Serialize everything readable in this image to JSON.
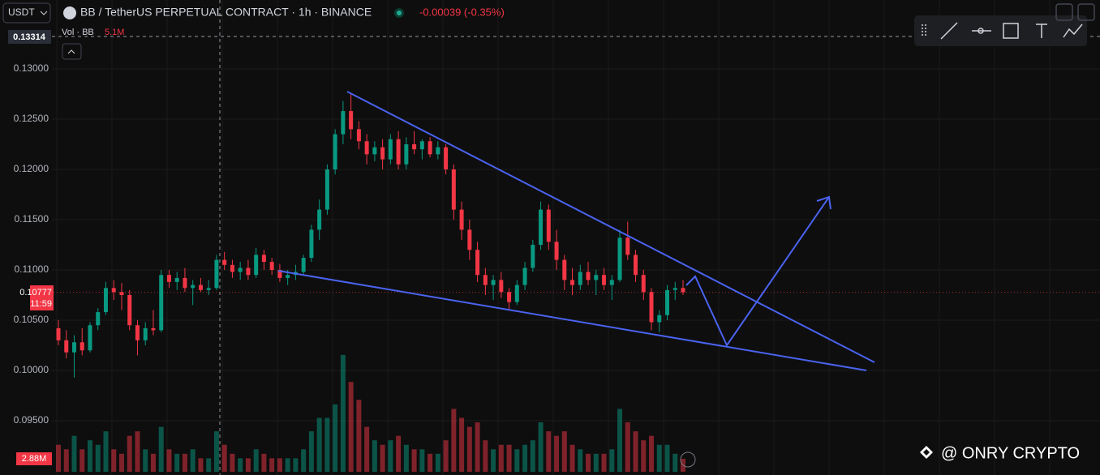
{
  "chart_data": {
    "type": "candlestick",
    "quote": "USDT",
    "title": "BB / TetherUS PERPETUAL CONTRACT · 1h · BINANCE",
    "change": "-0.00039 (-0.35%)",
    "volume_title": "Vol · BB",
    "volume_value": "5.1M",
    "crosshair_price": 0.13314,
    "current_price": 0.10777,
    "countdown": "11:59",
    "current_volume": {
      "value": 2.88,
      "label": "2.88M"
    },
    "watermark": "@ ONRY CRYPTO",
    "up_color": "#089981",
    "down_color": "#f23645",
    "line_color": "#4a63f0",
    "grid": true,
    "ylim": [
      0.0896,
      0.13685
    ],
    "yticks": [
      {
        "value": 0.095,
        "label": "0.09500"
      },
      {
        "value": 0.1,
        "label": "0.10000"
      },
      {
        "value": 0.105,
        "label": "0.10500"
      },
      {
        "value": 0.11,
        "label": "0.11000"
      },
      {
        "value": 0.115,
        "label": "0.11500"
      },
      {
        "value": 0.12,
        "label": "0.12000"
      },
      {
        "value": 0.125,
        "label": "0.12500"
      },
      {
        "value": 0.13,
        "label": "0.13000"
      }
    ],
    "volume_ylim": [
      0,
      105
    ],
    "candles": [
      [
        0.1042,
        0.105,
        0.1025,
        0.103
      ],
      [
        0.103,
        0.104,
        0.1012,
        0.1018
      ],
      [
        0.1018,
        0.1035,
        0.0993,
        0.1028
      ],
      [
        0.1028,
        0.1042,
        0.1015,
        0.102
      ],
      [
        0.102,
        0.1048,
        0.1018,
        0.1045
      ],
      [
        0.1045,
        0.1062,
        0.104,
        0.1058
      ],
      [
        0.1058,
        0.1088,
        0.1055,
        0.1082
      ],
      [
        0.1082,
        0.109,
        0.107,
        0.1078
      ],
      [
        0.1078,
        0.1087,
        0.106,
        0.1075
      ],
      [
        0.1075,
        0.108,
        0.104,
        0.1045
      ],
      [
        0.1045,
        0.105,
        0.1015,
        0.103
      ],
      [
        0.103,
        0.1048,
        0.1025,
        0.1042
      ],
      [
        0.1042,
        0.106,
        0.1035,
        0.104
      ],
      [
        0.104,
        0.11,
        0.1038,
        0.1095
      ],
      [
        0.1095,
        0.11,
        0.1082,
        0.1088
      ],
      [
        0.1088,
        0.1098,
        0.108,
        0.1092
      ],
      [
        0.1092,
        0.1102,
        0.1078,
        0.1082
      ],
      [
        0.1082,
        0.109,
        0.1065,
        0.1085
      ],
      [
        0.1085,
        0.1092,
        0.1078,
        0.108
      ],
      [
        0.108,
        0.109,
        0.1075,
        0.1082
      ],
      [
        0.1082,
        0.1115,
        0.108,
        0.111
      ],
      [
        0.111,
        0.1118,
        0.11,
        0.1105
      ],
      [
        0.1105,
        0.111,
        0.1092,
        0.1098
      ],
      [
        0.1098,
        0.1108,
        0.109,
        0.1102
      ],
      [
        0.1102,
        0.111,
        0.109,
        0.1095
      ],
      [
        0.1095,
        0.1122,
        0.1092,
        0.1115
      ],
      [
        0.1115,
        0.112,
        0.11,
        0.1108
      ],
      [
        0.1108,
        0.1112,
        0.1095,
        0.11
      ],
      [
        0.11,
        0.1106,
        0.1088,
        0.1092
      ],
      [
        0.1092,
        0.11,
        0.1085,
        0.1095
      ],
      [
        0.1095,
        0.1105,
        0.109,
        0.1098
      ],
      [
        0.1098,
        0.1115,
        0.1095,
        0.1112
      ],
      [
        0.1112,
        0.1145,
        0.1108,
        0.114
      ],
      [
        0.114,
        0.117,
        0.113,
        0.116
      ],
      [
        0.116,
        0.1205,
        0.1155,
        0.12
      ],
      [
        0.12,
        0.124,
        0.1195,
        0.1235
      ],
      [
        0.1235,
        0.1268,
        0.1225,
        0.1258
      ],
      [
        0.1258,
        0.1275,
        0.123,
        0.124
      ],
      [
        0.124,
        0.1248,
        0.122,
        0.1228
      ],
      [
        0.1228,
        0.1235,
        0.1205,
        0.1215
      ],
      [
        0.1215,
        0.1228,
        0.1208,
        0.1222
      ],
      [
        0.1222,
        0.123,
        0.12,
        0.121
      ],
      [
        0.121,
        0.1235,
        0.1205,
        0.123
      ],
      [
        0.123,
        0.1238,
        0.12,
        0.1205
      ],
      [
        0.1205,
        0.1232,
        0.12,
        0.1225
      ],
      [
        0.1225,
        0.1238,
        0.1215,
        0.122
      ],
      [
        0.122,
        0.123,
        0.121,
        0.1228
      ],
      [
        0.1228,
        0.1232,
        0.1212,
        0.1215
      ],
      [
        0.1215,
        0.1228,
        0.121,
        0.1222
      ],
      [
        0.1222,
        0.1225,
        0.1195,
        0.12
      ],
      [
        0.12,
        0.1205,
        0.115,
        0.116
      ],
      [
        0.116,
        0.1168,
        0.113,
        0.114
      ],
      [
        0.114,
        0.115,
        0.111,
        0.112
      ],
      [
        0.112,
        0.1128,
        0.1088,
        0.1095
      ],
      [
        0.1095,
        0.1102,
        0.1075,
        0.1085
      ],
      [
        0.1085,
        0.1095,
        0.107,
        0.109
      ],
      [
        0.109,
        0.1098,
        0.1072,
        0.1078
      ],
      [
        0.1078,
        0.1082,
        0.106,
        0.1068
      ],
      [
        0.1068,
        0.109,
        0.1065,
        0.1085
      ],
      [
        0.1085,
        0.1108,
        0.108,
        0.1102
      ],
      [
        0.1102,
        0.113,
        0.1098,
        0.1125
      ],
      [
        0.1125,
        0.1168,
        0.112,
        0.116
      ],
      [
        0.116,
        0.1165,
        0.112,
        0.1128
      ],
      [
        0.1128,
        0.114,
        0.11,
        0.111
      ],
      [
        0.111,
        0.1115,
        0.108,
        0.109
      ],
      [
        0.109,
        0.1102,
        0.1075,
        0.1085
      ],
      [
        0.1085,
        0.1105,
        0.108,
        0.1098
      ],
      [
        0.1098,
        0.1108,
        0.1085,
        0.109
      ],
      [
        0.109,
        0.11,
        0.1075,
        0.1095
      ],
      [
        0.1095,
        0.1102,
        0.108,
        0.1085
      ],
      [
        0.1085,
        0.1095,
        0.107,
        0.109
      ],
      [
        0.109,
        0.114,
        0.1088,
        0.1132
      ],
      [
        0.1132,
        0.1148,
        0.111,
        0.1115
      ],
      [
        0.1115,
        0.112,
        0.1088,
        0.1095
      ],
      [
        0.1095,
        0.11,
        0.107,
        0.1078
      ],
      [
        0.1078,
        0.1082,
        0.104,
        0.1048
      ],
      [
        0.1048,
        0.106,
        0.1038,
        0.1055
      ],
      [
        0.1055,
        0.1085,
        0.105,
        0.108
      ],
      [
        0.108,
        0.1088,
        0.107,
        0.1082
      ],
      [
        0.1082,
        0.109,
        0.1075,
        0.10777
      ]
    ],
    "volumes": [
      6,
      5,
      8,
      5,
      7,
      6,
      9,
      5,
      4,
      8,
      9,
      5,
      4,
      10,
      5,
      4,
      4,
      5,
      3,
      3,
      9,
      6,
      4,
      3,
      3,
      5,
      4,
      3,
      3,
      3,
      3,
      5,
      9,
      12,
      12,
      15,
      26,
      20,
      16,
      10,
      7,
      6,
      7,
      8,
      6,
      5,
      5,
      4,
      4,
      7,
      14,
      12,
      10,
      11,
      7,
      5,
      6,
      6,
      5,
      6,
      7,
      11,
      9,
      8,
      9,
      6,
      5,
      4,
      4,
      4,
      5,
      14,
      11,
      9,
      7,
      8,
      6,
      6,
      4,
      2.88
    ]
  }
}
